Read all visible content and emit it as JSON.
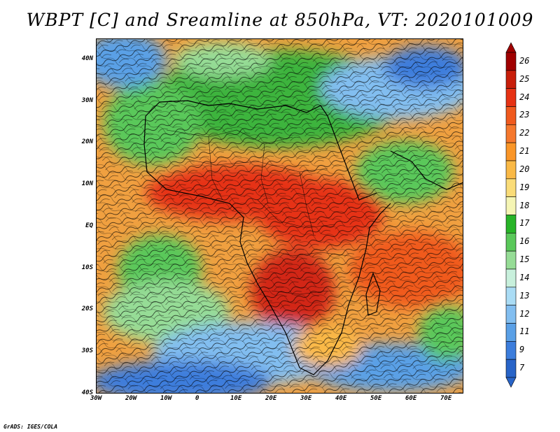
{
  "title": "WBPT [C] and Sreamline at 850hPa, VT: 2020101009",
  "credit": "GrADS: IGES/COLA",
  "map": {
    "lon_range": [
      -30,
      75
    ],
    "lat_range": [
      -40,
      45
    ],
    "lat_ticks": [
      {
        "value": 40,
        "label": "40N"
      },
      {
        "value": 30,
        "label": "30N"
      },
      {
        "value": 20,
        "label": "20N"
      },
      {
        "value": 10,
        "label": "10N"
      },
      {
        "value": 0,
        "label": "EQ"
      },
      {
        "value": -10,
        "label": "10S"
      },
      {
        "value": -20,
        "label": "20S"
      },
      {
        "value": -30,
        "label": "30S"
      },
      {
        "value": -40,
        "label": "40S"
      }
    ],
    "lon_ticks": [
      {
        "value": -30,
        "label": "30W"
      },
      {
        "value": -20,
        "label": "20W"
      },
      {
        "value": -10,
        "label": "10W"
      },
      {
        "value": 0,
        "label": "0"
      },
      {
        "value": 10,
        "label": "10E"
      },
      {
        "value": 20,
        "label": "20E"
      },
      {
        "value": 30,
        "label": "30E"
      },
      {
        "value": 40,
        "label": "40E"
      },
      {
        "value": 50,
        "label": "50E"
      },
      {
        "value": 60,
        "label": "60E"
      },
      {
        "value": 70,
        "label": "70E"
      }
    ]
  },
  "colorbar": {
    "levels": [
      "26",
      "25",
      "24",
      "23",
      "22",
      "21",
      "20",
      "19",
      "18",
      "17",
      "16",
      "15",
      "14",
      "13",
      "12",
      "11",
      "9",
      "7"
    ],
    "colors": [
      "#a00000",
      "#c81e0a",
      "#e63214",
      "#f05a1e",
      "#f5782d",
      "#fa9628",
      "#fab946",
      "#fadc78",
      "#f5f5b4",
      "#28b428",
      "#5ac85a",
      "#96dc96",
      "#c8f0dc",
      "#aadcf5",
      "#82bef0",
      "#5aa0e6",
      "#3c7ddc",
      "#2864c8"
    ]
  }
}
